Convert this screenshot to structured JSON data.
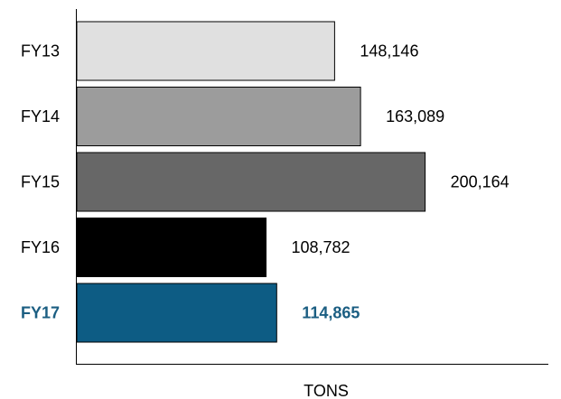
{
  "chart_data": {
    "type": "bar",
    "orientation": "horizontal",
    "title": "",
    "xlabel": "TONS",
    "ylabel": "",
    "categories": [
      "FY13",
      "FY14",
      "FY15",
      "FY16",
      "FY17"
    ],
    "values": [
      148146,
      163089,
      200164,
      108782,
      114865
    ],
    "value_labels": [
      "148,146",
      "163,089",
      "200,164",
      "108,782",
      "114,865"
    ],
    "bar_colors": [
      "#e0e0e0",
      "#9c9c9c",
      "#676767",
      "#000000",
      "#0d5c84"
    ],
    "highlight": {
      "category": "FY17",
      "label_color": "#1b5e82",
      "bold": true
    },
    "grid": false,
    "legend": "none",
    "xlim": [
      0,
      271000
    ]
  }
}
